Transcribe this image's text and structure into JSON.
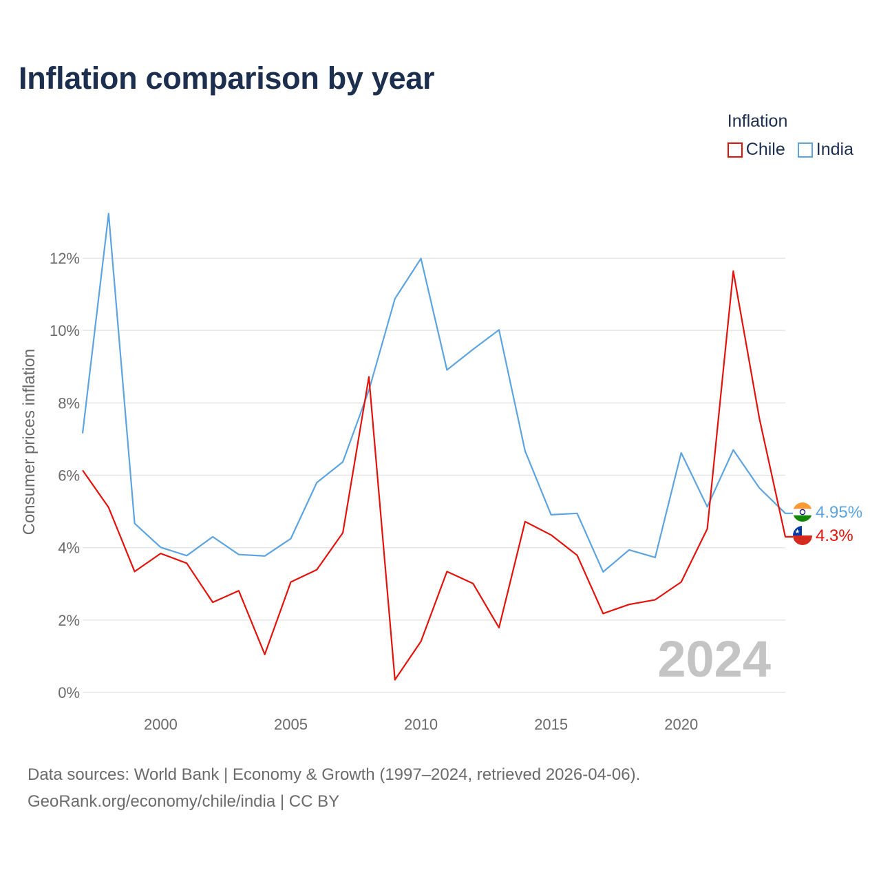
{
  "chart_data": {
    "type": "line",
    "title": "Inflation comparison by year",
    "legend_title": "Inflation",
    "ylabel": "Consumer prices inflation",
    "xlabel": "",
    "x": [
      1997,
      1998,
      1999,
      2000,
      2001,
      2002,
      2003,
      2004,
      2005,
      2006,
      2007,
      2008,
      2009,
      2010,
      2011,
      2012,
      2013,
      2014,
      2015,
      2016,
      2017,
      2018,
      2019,
      2020,
      2021,
      2022,
      2023,
      2024
    ],
    "xlim": [
      1997,
      2024
    ],
    "ylim": [
      0,
      13.2
    ],
    "x_ticks": [
      2000,
      2005,
      2010,
      2015,
      2020
    ],
    "x_tick_labels": [
      "2000",
      "2005",
      "2010",
      "2015",
      "2020"
    ],
    "y_ticks": [
      0,
      2,
      4,
      6,
      8,
      10,
      12
    ],
    "y_tick_labels": [
      "0%",
      "2%",
      "4%",
      "6%",
      "8%",
      "10%",
      "12%"
    ],
    "series": [
      {
        "name": "Chile",
        "color": "#e3120b",
        "values": [
          6.14,
          5.11,
          3.34,
          3.84,
          3.57,
          2.49,
          2.81,
          1.05,
          3.05,
          3.39,
          4.41,
          8.72,
          0.35,
          1.41,
          3.34,
          3.01,
          1.79,
          4.72,
          4.35,
          3.79,
          2.18,
          2.43,
          2.56,
          3.05,
          4.52,
          11.64,
          7.58,
          4.3
        ],
        "end_label": "4.3%",
        "flag_icon": "chile-flag-icon"
      },
      {
        "name": "India",
        "color": "#5ca4e0",
        "values": [
          7.16,
          13.23,
          4.67,
          4.01,
          3.78,
          4.3,
          3.81,
          3.77,
          4.25,
          5.8,
          6.37,
          8.35,
          10.88,
          11.99,
          8.91,
          9.48,
          10.02,
          6.67,
          4.91,
          4.95,
          3.33,
          3.94,
          3.73,
          6.62,
          5.13,
          6.7,
          5.65,
          4.95
        ],
        "end_label": "4.95%",
        "flag_icon": "india-flag-icon"
      }
    ],
    "year_watermark": "2024",
    "grid": true,
    "legend_position": "top-right"
  },
  "footer": {
    "line1": "Data sources: World Bank | Economy & Growth (1997–2024, retrieved 2026-04-06).",
    "line2": "GeoRank.org/economy/chile/india | CC BY"
  }
}
